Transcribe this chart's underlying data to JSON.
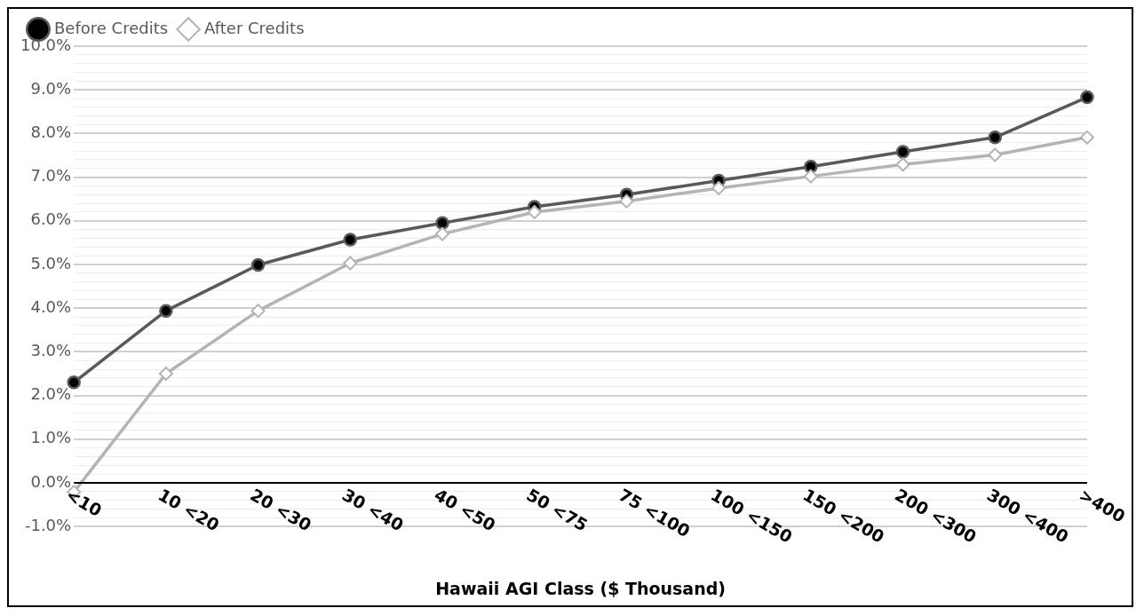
{
  "chart_data": {
    "type": "line",
    "xlabel": "Hawaii AGI Class ($ Thousand)",
    "categories": [
      "<10",
      "10 <20",
      "20 <30",
      "30 <40",
      "40 <50",
      "50 <75",
      "75 <100",
      "100 <150",
      "150 <200",
      "200 <300",
      "300 <400",
      ">400"
    ],
    "series": [
      {
        "name": "Before Credits",
        "color": "#595959",
        "marker": "circle",
        "values": [
          2.3,
          3.94,
          4.99,
          5.57,
          5.95,
          6.32,
          6.6,
          6.92,
          7.24,
          7.58,
          7.91,
          8.83
        ]
      },
      {
        "name": "After Credits",
        "color": "#b4b4b4",
        "marker": "diamond",
        "values": [
          -0.21,
          2.5,
          3.94,
          5.03,
          5.7,
          6.2,
          6.45,
          6.75,
          7.02,
          7.29,
          7.51,
          7.91
        ]
      }
    ],
    "ylim": [
      -1,
      10
    ],
    "yticks": [
      {
        "value": -1,
        "label": "-1.0%"
      },
      {
        "value": -0.8,
        "label": null
      },
      {
        "value": -0.6,
        "label": null
      },
      {
        "value": -0.4,
        "label": null
      },
      {
        "value": -0.2,
        "label": null
      },
      {
        "value": 0,
        "label": "0.0%"
      },
      {
        "value": 0.2,
        "label": null
      },
      {
        "value": 0.4,
        "label": null
      },
      {
        "value": 0.6,
        "label": null
      },
      {
        "value": 0.8,
        "label": null
      },
      {
        "value": 1,
        "label": "1.0%"
      },
      {
        "value": 1.2,
        "label": null
      },
      {
        "value": 1.4,
        "label": null
      },
      {
        "value": 1.6,
        "label": null
      },
      {
        "value": 1.8,
        "label": null
      },
      {
        "value": 2,
        "label": "2.0%"
      },
      {
        "value": 2.2,
        "label": null
      },
      {
        "value": 2.4,
        "label": null
      },
      {
        "value": 2.6,
        "label": null
      },
      {
        "value": 2.8,
        "label": null
      },
      {
        "value": 3,
        "label": "3.0%"
      },
      {
        "value": 3.2,
        "label": null
      },
      {
        "value": 3.4,
        "label": null
      },
      {
        "value": 3.6,
        "label": null
      },
      {
        "value": 3.8,
        "label": null
      },
      {
        "value": 4,
        "label": "4.0%"
      },
      {
        "value": 4.2,
        "label": null
      },
      {
        "value": 4.4,
        "label": null
      },
      {
        "value": 4.6,
        "label": null
      },
      {
        "value": 4.8,
        "label": null
      },
      {
        "value": 5,
        "label": "5.0%"
      },
      {
        "value": 5.2,
        "label": null
      },
      {
        "value": 5.4,
        "label": null
      },
      {
        "value": 5.6,
        "label": null
      },
      {
        "value": 5.8,
        "label": null
      },
      {
        "value": 6,
        "label": "6.0%"
      },
      {
        "value": 6.2,
        "label": null
      },
      {
        "value": 6.4,
        "label": null
      },
      {
        "value": 6.6,
        "label": null
      },
      {
        "value": 6.8,
        "label": null
      },
      {
        "value": 7,
        "label": "7.0%"
      },
      {
        "value": 7.2,
        "label": null
      },
      {
        "value": 7.4,
        "label": null
      },
      {
        "value": 7.6,
        "label": null
      },
      {
        "value": 7.8,
        "label": null
      },
      {
        "value": 8,
        "label": "8.0%"
      },
      {
        "value": 8.2,
        "label": null
      },
      {
        "value": 8.4,
        "label": null
      },
      {
        "value": 8.6,
        "label": null
      },
      {
        "value": 8.8,
        "label": null
      },
      {
        "value": 9,
        "label": "9.0%"
      },
      {
        "value": 9.2,
        "label": null
      },
      {
        "value": 9.4,
        "label": null
      },
      {
        "value": 9.6,
        "label": null
      },
      {
        "value": 9.8,
        "label": null
      },
      {
        "value": 10,
        "label": "10.0%"
      }
    ],
    "ref_lines": [
      {
        "axis": "y",
        "value": 0,
        "color": "#000000"
      }
    ],
    "grid": "y",
    "legend": "top",
    "line_style": "solid"
  }
}
